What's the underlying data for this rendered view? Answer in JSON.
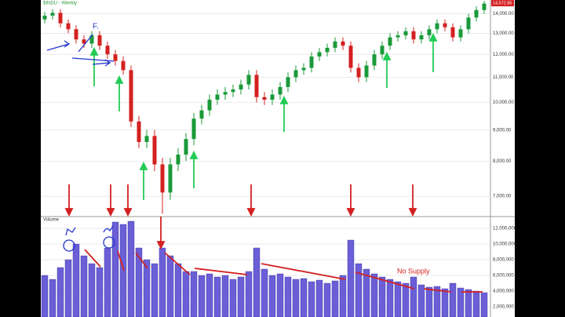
{
  "chart_data": [
    {
      "type": "candlestick",
      "title": "$INDU - Weekly",
      "log_scale": true,
      "grid": true,
      "up_color": "#1a9a3a",
      "down_color": "#d42020",
      "ylim": [
        6480,
        14750
      ],
      "yticks": [
        {
          "value": 7000,
          "label": "7,000.00"
        },
        {
          "value": 8000,
          "label": "8,000.00"
        },
        {
          "value": 9000,
          "label": "9,000.00"
        },
        {
          "value": 10000,
          "label": "10,000.00"
        },
        {
          "value": 11000,
          "label": "11,000.00"
        },
        {
          "value": 12000,
          "label": "12,000.00"
        },
        {
          "value": 13000,
          "label": "13,000.00"
        },
        {
          "value": 14000,
          "label": "14,000.00"
        }
      ],
      "last_value": 14572.85,
      "last_value_label": "14,572.85",
      "annotations": [
        "F."
      ],
      "open": [
        13700,
        13900,
        14050,
        13500,
        13200,
        12700,
        12500,
        12900,
        12400,
        12000,
        11700,
        11300,
        9300,
        8600,
        8800,
        7900,
        7100,
        7900,
        8200,
        8700,
        9400,
        9700,
        10100,
        10300,
        10400,
        10500,
        10700,
        11100,
        10200,
        10100,
        10300,
        10600,
        11000,
        11300,
        11400,
        11900,
        12100,
        12300,
        12600,
        12400,
        11400,
        11000,
        11500,
        12000,
        12400,
        12800,
        12900,
        13100,
        12700,
        12900,
        13200,
        13500,
        13300,
        12800,
        13200,
        13800,
        14200
      ],
      "high": [
        14100,
        14250,
        14250,
        13700,
        13400,
        12900,
        13100,
        13100,
        12600,
        12200,
        11900,
        11500,
        9500,
        9000,
        9000,
        8100,
        8100,
        8400,
        8900,
        9600,
        9900,
        10300,
        10500,
        10600,
        10700,
        10900,
        11300,
        11300,
        10400,
        10500,
        10800,
        11200,
        11500,
        11600,
        12100,
        12300,
        12500,
        12800,
        12800,
        12600,
        11600,
        11700,
        12200,
        12600,
        13000,
        13100,
        13300,
        13300,
        13100,
        13400,
        13700,
        13700,
        13500,
        13400,
        14000,
        14400,
        14700
      ],
      "low": [
        13500,
        13700,
        13300,
        13000,
        12500,
        12300,
        12300,
        12200,
        11800,
        11500,
        11100,
        9100,
        8400,
        8400,
        7700,
        6550,
        6900,
        7700,
        8000,
        8500,
        9200,
        9500,
        9900,
        10100,
        10200,
        10300,
        10500,
        10000,
        9900,
        9900,
        10100,
        10400,
        10800,
        11100,
        11200,
        11700,
        11900,
        12100,
        12200,
        11200,
        10800,
        10800,
        11300,
        11800,
        12200,
        12600,
        12700,
        12500,
        12500,
        12700,
        13000,
        13100,
        12600,
        12600,
        13000,
        13600,
        14000
      ],
      "close": [
        13900,
        14050,
        13500,
        13200,
        12700,
        12500,
        12900,
        12400,
        12000,
        11700,
        11300,
        9300,
        8600,
        8800,
        7900,
        7100,
        7900,
        8200,
        8700,
        9400,
        9700,
        10100,
        10300,
        10400,
        10500,
        10700,
        11100,
        10200,
        10100,
        10300,
        10600,
        11000,
        11300,
        11400,
        11900,
        12100,
        12300,
        12600,
        12400,
        11400,
        11000,
        11500,
        12000,
        12400,
        12800,
        12900,
        13100,
        12700,
        12900,
        13200,
        13500,
        13300,
        12800,
        13200,
        13800,
        14200,
        14550
      ]
    },
    {
      "type": "bar",
      "title": "Volume",
      "color": "#6a5fd6",
      "grid": true,
      "ylim": [
        700000,
        12900000
      ],
      "yticks": [
        {
          "value": 2000000,
          "label": "2,000,000"
        },
        {
          "value": 4000000,
          "label": "4,000,000"
        },
        {
          "value": 6000000,
          "label": "6,000,000"
        },
        {
          "value": 8000000,
          "label": "8,000,000"
        },
        {
          "value": 10000000,
          "label": "10,000,000"
        },
        {
          "value": 12000000,
          "label": "12,000,000"
        }
      ],
      "annotations": [
        "No Supply"
      ],
      "values": [
        6000000,
        5500000,
        7000000,
        8000000,
        10000000,
        8500000,
        7500000,
        7000000,
        9500000,
        12800000,
        12500000,
        12900000,
        9500000,
        8000000,
        7500000,
        9500000,
        8500000,
        7500000,
        6500000,
        6500000,
        6000000,
        6200000,
        5800000,
        6000000,
        5500000,
        5800000,
        6500000,
        9500000,
        6800000,
        6000000,
        6200000,
        5800000,
        5500000,
        5600000,
        5200000,
        5400000,
        5000000,
        5300000,
        6000000,
        10500000,
        7500000,
        6800000,
        6200000,
        5800000,
        5500000,
        5200000,
        5000000,
        5800000,
        4800000,
        4500000,
        4600000,
        4300000,
        5000000,
        4400000,
        4200000,
        4000000,
        3800000
      ]
    }
  ]
}
